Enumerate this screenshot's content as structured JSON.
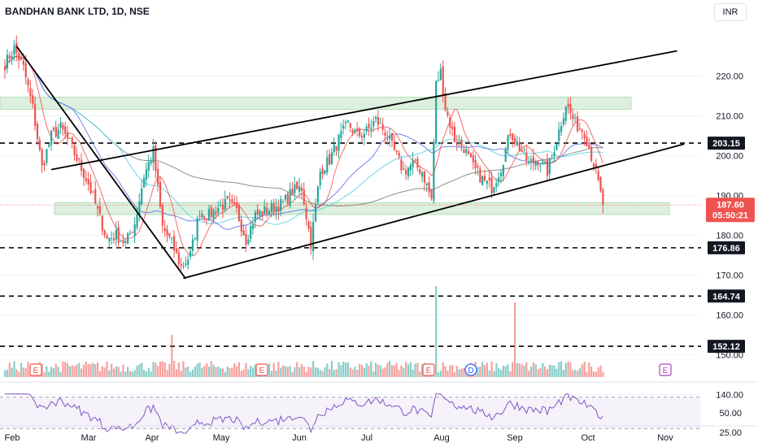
{
  "header": {
    "title": "BANDHAN BANK LTD, 1D, NSE",
    "currency": "INR"
  },
  "colors": {
    "up": "#26a69a",
    "down": "#ef5350",
    "zone_fill": "#a5d6a7",
    "ma_red": "#ef5350",
    "ma_cyan": "#4dd0e1",
    "ma_blue": "#5b6ee8",
    "ma_gray": "#7a7a7a",
    "rsi_line": "#7e57c2",
    "last_price_bg": "#ef5350"
  },
  "price_axis": {
    "ticks": [
      "220.00",
      "210.00",
      "200.00",
      "190.00",
      "180.00",
      "170.00",
      "160.00",
      "150.00",
      "140.00"
    ],
    "tick_values": [
      220,
      210,
      200,
      190,
      180,
      170,
      160,
      150,
      140
    ]
  },
  "rsi_axis": {
    "ticks": [
      "50.00",
      "25.00"
    ],
    "tick_values": [
      50,
      25
    ]
  },
  "time_axis": {
    "labels": [
      "Feb",
      "Mar",
      "Apr",
      "May",
      "Jun",
      "Jul",
      "Aug",
      "Sep",
      "Oct",
      "Nov"
    ]
  },
  "levels": [
    {
      "label": "203.15",
      "value": 203.15
    },
    {
      "label": "176.86",
      "value": 176.86
    },
    {
      "label": "164.74",
      "value": 164.74
    },
    {
      "label": "152.12",
      "value": 152.12
    }
  ],
  "last_price": {
    "label": "187.60",
    "countdown": "05:50:21",
    "value": 187.6
  },
  "events": [
    {
      "label": "E",
      "kind": "earnings"
    },
    {
      "label": "E",
      "kind": "earnings"
    },
    {
      "label": "E",
      "kind": "earnings"
    },
    {
      "label": "D",
      "kind": "dividend"
    },
    {
      "label": "E",
      "kind": "earnings-upcoming"
    }
  ],
  "chart_data": {
    "type": "candlestick",
    "title": "BANDHAN BANK LTD, 1D, NSE",
    "unit": "INR",
    "price_range": [
      138,
      228
    ],
    "series_anchor_price": [
      [
        0,
        223
      ],
      [
        4,
        227
      ],
      [
        8,
        222
      ],
      [
        12,
        212
      ],
      [
        16,
        197
      ],
      [
        20,
        205
      ],
      [
        24,
        207
      ],
      [
        28,
        203
      ],
      [
        32,
        198
      ],
      [
        36,
        193
      ],
      [
        40,
        186
      ],
      [
        44,
        179
      ],
      [
        48,
        180
      ],
      [
        52,
        178
      ],
      [
        56,
        183
      ],
      [
        60,
        195
      ],
      [
        64,
        201
      ],
      [
        68,
        182
      ],
      [
        72,
        178
      ],
      [
        76,
        172
      ],
      [
        80,
        175
      ],
      [
        84,
        186
      ],
      [
        88,
        185
      ],
      [
        92,
        187
      ],
      [
        96,
        188
      ],
      [
        100,
        186
      ],
      [
        104,
        179
      ],
      [
        108,
        185
      ],
      [
        112,
        186
      ],
      [
        116,
        187
      ],
      [
        120,
        188
      ],
      [
        124,
        191
      ],
      [
        128,
        192
      ],
      [
        132,
        178
      ],
      [
        136,
        196
      ],
      [
        140,
        199
      ],
      [
        144,
        204
      ],
      [
        148,
        208
      ],
      [
        152,
        205
      ],
      [
        156,
        206
      ],
      [
        160,
        209
      ],
      [
        164,
        206
      ],
      [
        168,
        201
      ],
      [
        172,
        196
      ],
      [
        176,
        198
      ],
      [
        180,
        196
      ],
      [
        184,
        189
      ],
      [
        186,
        218
      ],
      [
        188,
        221
      ],
      [
        190,
        212
      ],
      [
        194,
        204
      ],
      [
        198,
        202
      ],
      [
        202,
        197
      ],
      [
        206,
        194
      ],
      [
        210,
        192
      ],
      [
        214,
        197
      ],
      [
        218,
        206
      ],
      [
        222,
        202
      ],
      [
        226,
        198
      ],
      [
        230,
        199
      ],
      [
        234,
        196
      ],
      [
        238,
        204
      ],
      [
        242,
        213
      ],
      [
        246,
        208
      ],
      [
        250,
        206
      ],
      [
        254,
        198
      ],
      [
        256,
        193
      ],
      [
        258,
        187.6
      ]
    ],
    "volume_spikes": [
      {
        "month": "Apr",
        "relative": 0.4
      },
      {
        "month": "Jul",
        "relative": 1.0
      },
      {
        "month": "Sep",
        "relative": 0.85
      }
    ],
    "rsi_range": [
      20,
      80
    ],
    "rsi_band": [
      30,
      70
    ],
    "trendlines": [
      {
        "name": "channel-upper",
        "from": [
          20,
          196.5
        ],
        "to": [
          290,
          226.3
        ]
      },
      {
        "name": "channel-lower",
        "from": [
          77,
          169.2
        ],
        "to": [
          293,
          202.9
        ]
      },
      {
        "name": "downtrend",
        "from": [
          5,
          227.5
        ],
        "to": [
          78,
          169.1
        ]
      }
    ],
    "zones": [
      {
        "name": "resistance-zone",
        "low": 211.6,
        "high": 214.7
      },
      {
        "name": "support-zone",
        "low": 185.2,
        "high": 188.2
      }
    ],
    "moving_averages": [
      "ma_red",
      "ma_cyan",
      "ma_blue",
      "ma_gray"
    ],
    "levels": [
      203.15,
      176.86,
      164.74,
      152.12
    ],
    "last_price": 187.6
  }
}
